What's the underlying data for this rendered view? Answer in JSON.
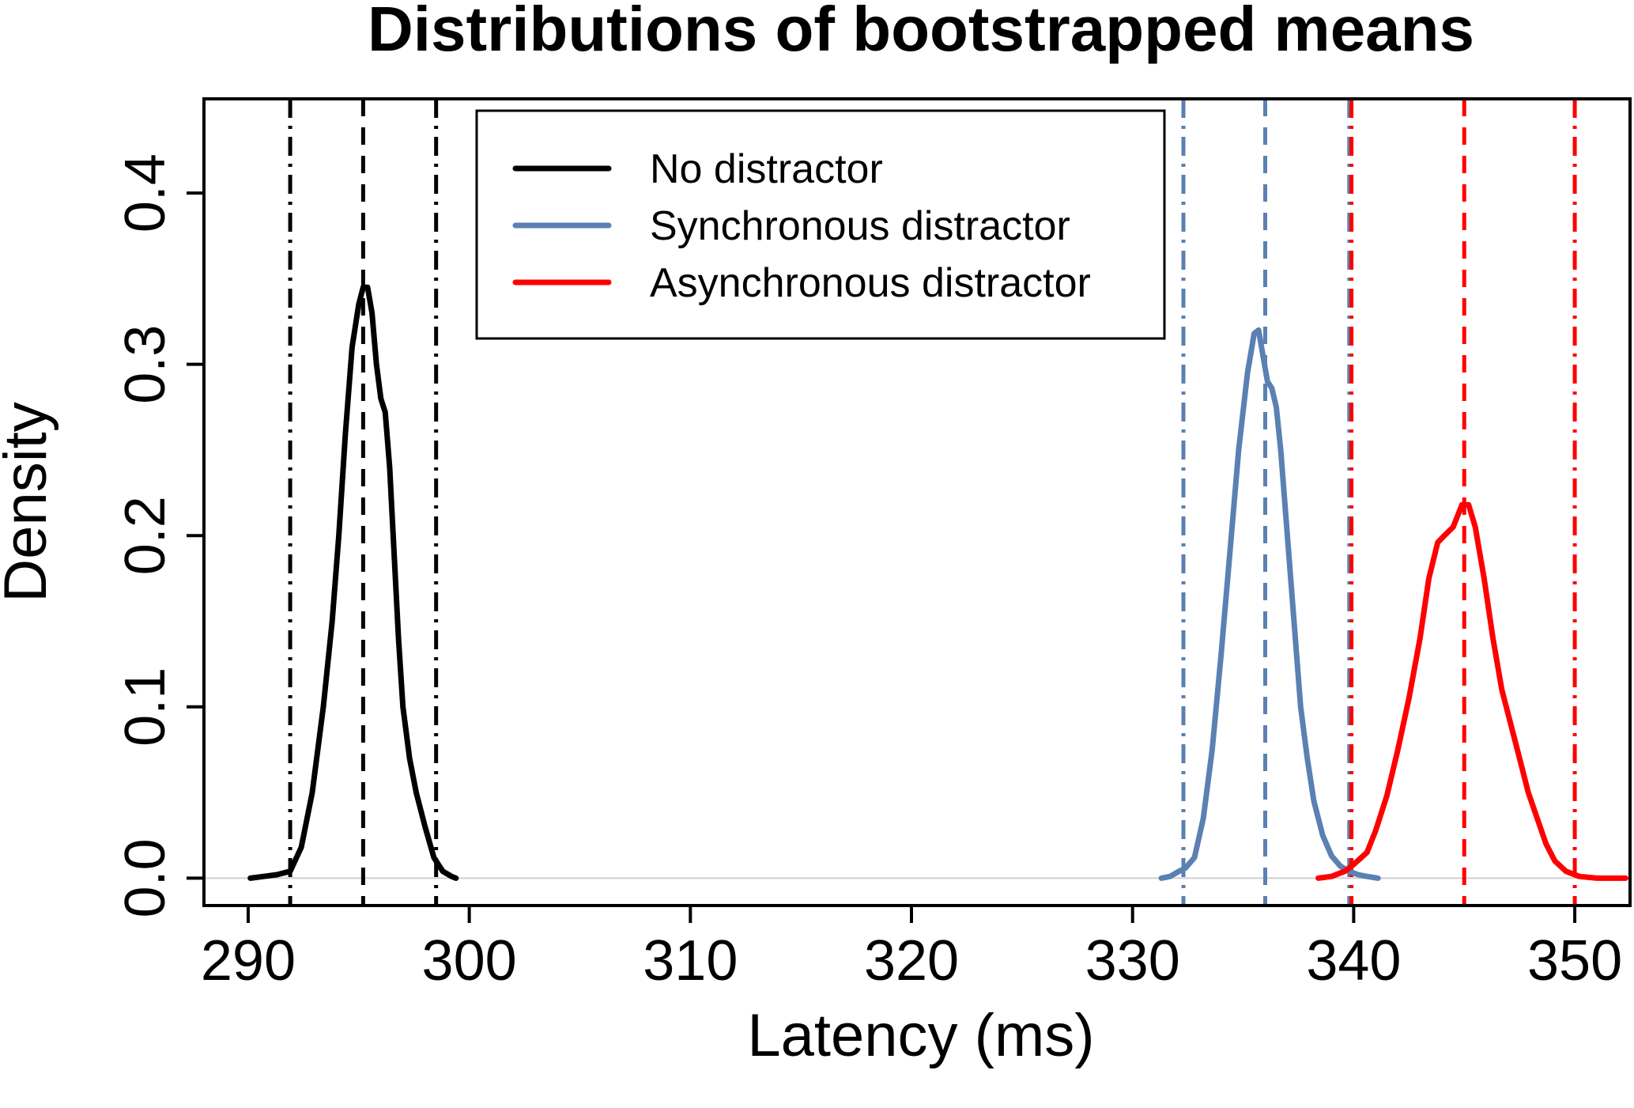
{
  "chart_data": {
    "type": "line",
    "title": "Distributions of bootstrapped means",
    "xlabel": "Latency (ms)",
    "ylabel": "Density",
    "xlim": [
      288,
      352.5
    ],
    "ylim": [
      -0.016,
      0.455
    ],
    "x_ticks": [
      290,
      300,
      310,
      320,
      330,
      340,
      350
    ],
    "x_tick_labels": [
      "290",
      "300",
      "310",
      "320",
      "330",
      "340",
      "350"
    ],
    "y_ticks": [
      0.0,
      0.1,
      0.2,
      0.3,
      0.4
    ],
    "y_tick_labels": [
      "0.0",
      "0.1",
      "0.2",
      "0.3",
      "0.4"
    ],
    "legend_position": "top-center",
    "baseline_y": 0,
    "series": [
      {
        "name": "No distractor",
        "color": "#000000",
        "points": [
          [
            290.1,
            0.0
          ],
          [
            290.7,
            0.001
          ],
          [
            291.3,
            0.002
          ],
          [
            291.9,
            0.004
          ],
          [
            292.4,
            0.018
          ],
          [
            292.9,
            0.05
          ],
          [
            293.4,
            0.1
          ],
          [
            293.8,
            0.15
          ],
          [
            294.1,
            0.2
          ],
          [
            294.4,
            0.26
          ],
          [
            294.7,
            0.31
          ],
          [
            295.0,
            0.335
          ],
          [
            295.2,
            0.345
          ],
          [
            295.4,
            0.345
          ],
          [
            295.6,
            0.33
          ],
          [
            295.8,
            0.3
          ],
          [
            296.0,
            0.28
          ],
          [
            296.2,
            0.272
          ],
          [
            296.4,
            0.24
          ],
          [
            296.6,
            0.19
          ],
          [
            296.8,
            0.14
          ],
          [
            297.0,
            0.1
          ],
          [
            297.3,
            0.07
          ],
          [
            297.6,
            0.05
          ],
          [
            298.0,
            0.03
          ],
          [
            298.4,
            0.012
          ],
          [
            298.8,
            0.004
          ],
          [
            299.2,
            0.001
          ],
          [
            299.4,
            0.0
          ]
        ],
        "mean": 295.2,
        "ci": [
          291.9,
          298.5
        ]
      },
      {
        "name": "Synchronous distractor",
        "color": "#5b80b2",
        "points": [
          [
            331.3,
            0.0
          ],
          [
            331.7,
            0.001
          ],
          [
            332.1,
            0.004
          ],
          [
            332.4,
            0.006
          ],
          [
            332.8,
            0.012
          ],
          [
            333.2,
            0.035
          ],
          [
            333.6,
            0.075
          ],
          [
            334.0,
            0.13
          ],
          [
            334.4,
            0.19
          ],
          [
            334.8,
            0.25
          ],
          [
            335.2,
            0.295
          ],
          [
            335.5,
            0.318
          ],
          [
            335.7,
            0.32
          ],
          [
            335.9,
            0.305
          ],
          [
            336.1,
            0.29
          ],
          [
            336.3,
            0.286
          ],
          [
            336.5,
            0.275
          ],
          [
            336.7,
            0.25
          ],
          [
            337.0,
            0.2
          ],
          [
            337.3,
            0.15
          ],
          [
            337.6,
            0.1
          ],
          [
            337.9,
            0.07
          ],
          [
            338.2,
            0.045
          ],
          [
            338.6,
            0.025
          ],
          [
            339.0,
            0.013
          ],
          [
            339.4,
            0.007
          ],
          [
            339.8,
            0.004
          ],
          [
            340.2,
            0.002
          ],
          [
            340.6,
            0.001
          ],
          [
            341.1,
            0.0
          ]
        ],
        "mean": 336.0,
        "ci": [
          332.3,
          339.8
        ]
      },
      {
        "name": "Asynchronous distractor",
        "color": "#ff0000",
        "points": [
          [
            338.4,
            0.0
          ],
          [
            339.0,
            0.001
          ],
          [
            339.6,
            0.004
          ],
          [
            340.0,
            0.008
          ],
          [
            340.6,
            0.015
          ],
          [
            341.0,
            0.028
          ],
          [
            341.5,
            0.048
          ],
          [
            342.0,
            0.075
          ],
          [
            342.5,
            0.105
          ],
          [
            343.0,
            0.14
          ],
          [
            343.4,
            0.175
          ],
          [
            343.8,
            0.196
          ],
          [
            344.1,
            0.2
          ],
          [
            344.5,
            0.205
          ],
          [
            344.9,
            0.218
          ],
          [
            345.2,
            0.218
          ],
          [
            345.5,
            0.205
          ],
          [
            345.9,
            0.175
          ],
          [
            346.3,
            0.14
          ],
          [
            346.7,
            0.11
          ],
          [
            347.1,
            0.09
          ],
          [
            347.5,
            0.07
          ],
          [
            347.9,
            0.05
          ],
          [
            348.3,
            0.035
          ],
          [
            348.7,
            0.02
          ],
          [
            349.1,
            0.01
          ],
          [
            349.6,
            0.004
          ],
          [
            350.2,
            0.001
          ],
          [
            351.0,
            0.0
          ],
          [
            352.3,
            0.0
          ]
        ],
        "mean": 345.0,
        "ci": [
          339.9,
          350.0
        ]
      }
    ]
  }
}
